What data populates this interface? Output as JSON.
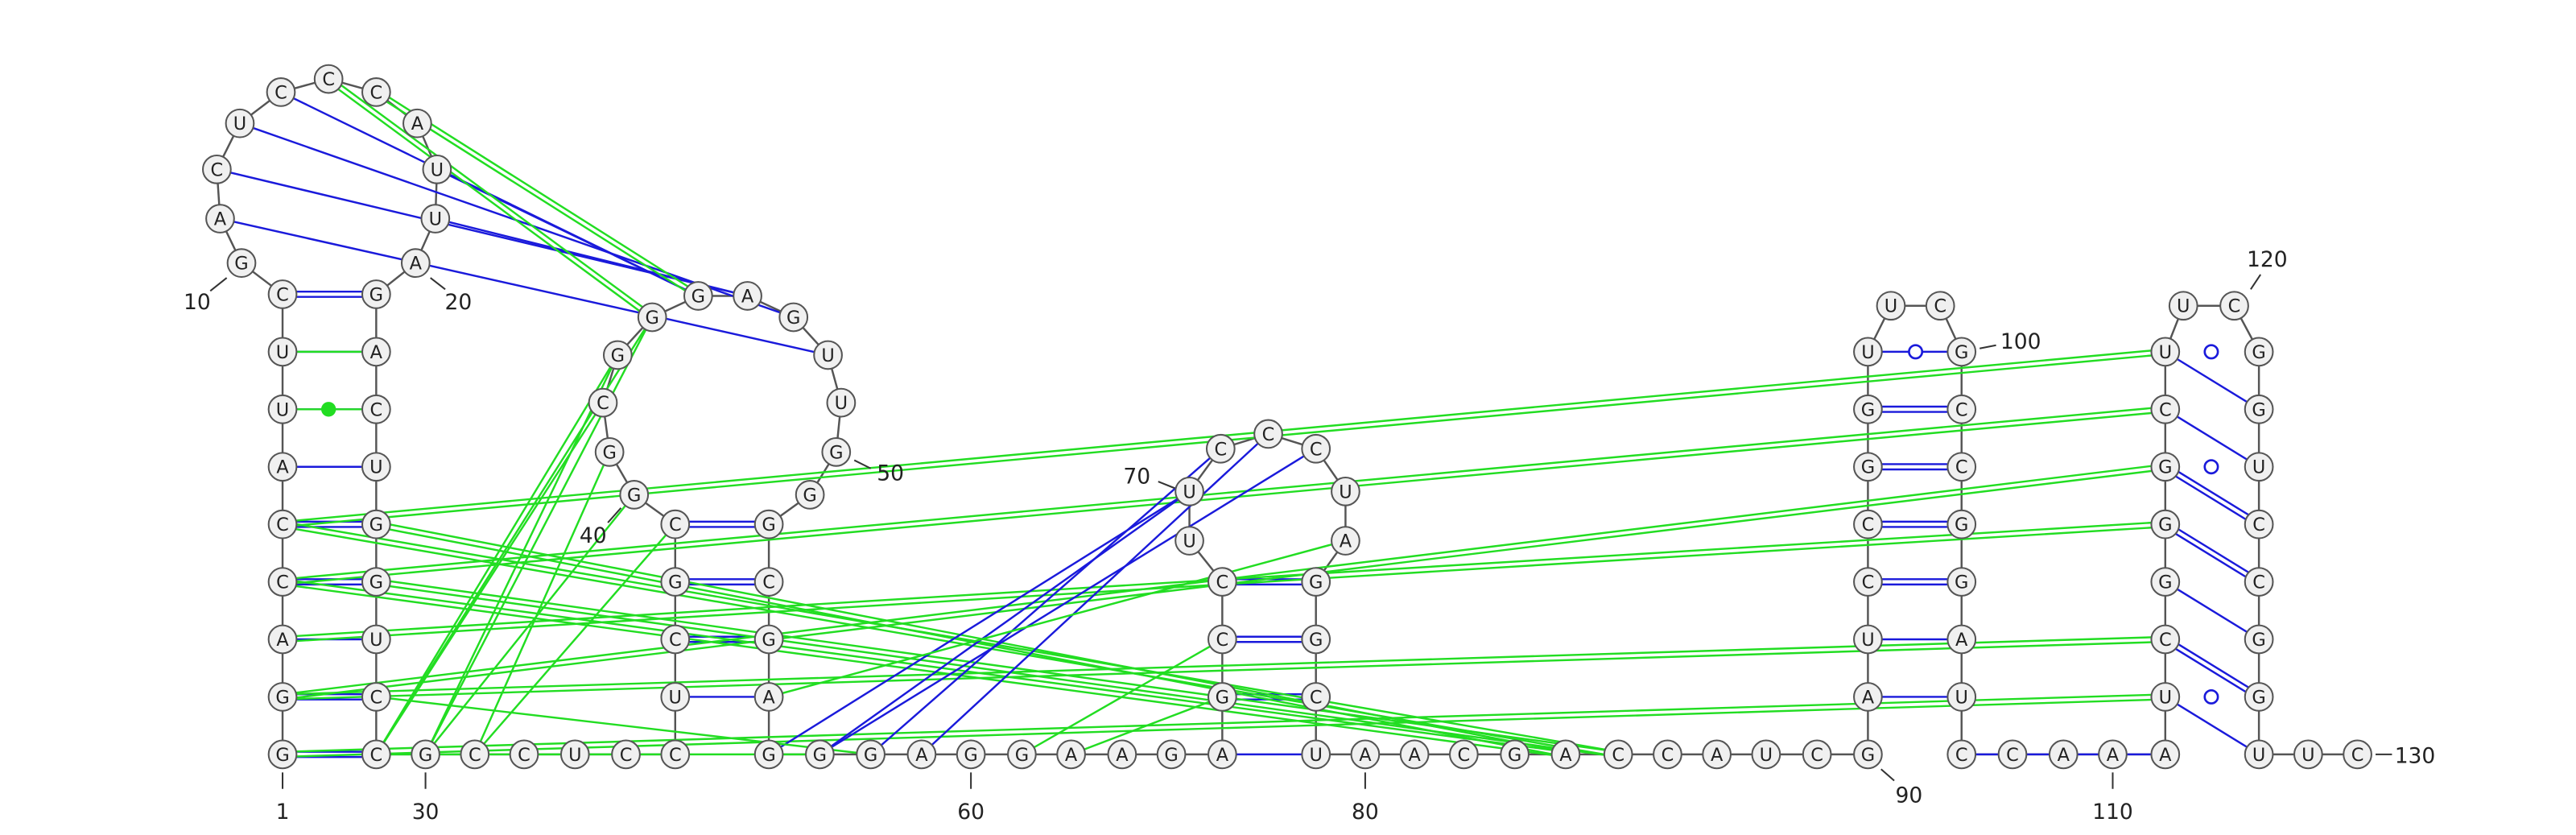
{
  "sequence": [
    "G",
    "G",
    "A",
    "C",
    "C",
    "A",
    "U",
    "U",
    "C",
    "G",
    "A",
    "C",
    "U",
    "C",
    "C",
    "C",
    "A",
    "U",
    "U",
    "A",
    "G",
    "A",
    "C",
    "U",
    "G",
    "G",
    "U",
    "C",
    "C",
    "G",
    "C",
    "C",
    "U",
    "C",
    "C",
    "U",
    "C",
    "G",
    "C",
    "G",
    "G",
    "C",
    "G",
    "G",
    "G",
    "A",
    "G",
    "U",
    "U",
    "G",
    "G",
    "G",
    "C",
    "G",
    "A",
    "G",
    "G",
    "G",
    "A",
    "G",
    "G",
    "A",
    "A",
    "G",
    "A",
    "G",
    "C",
    "C",
    "U",
    "U",
    "C",
    "C",
    "C",
    "U",
    "A",
    "G",
    "G",
    "C",
    "U",
    "A",
    "A",
    "C",
    "G",
    "A",
    "C",
    "C",
    "A",
    "U",
    "C",
    "G",
    "A",
    "U",
    "C",
    "C",
    "G",
    "G",
    "U",
    "U",
    "C",
    "G",
    "C",
    "C",
    "G",
    "G",
    "A",
    "U",
    "C",
    "C",
    "A",
    "A",
    "A",
    "U",
    "C",
    "G",
    "G",
    "G",
    "C",
    "U",
    "U",
    "C",
    "G",
    "G",
    "U",
    "C",
    "C",
    "G",
    "G",
    "U",
    "U",
    "C"
  ],
  "position_labels": [
    "1",
    "10",
    "20",
    "30",
    "40",
    "50",
    "60",
    "70",
    "80",
    "90",
    "100",
    "110",
    "120",
    "130"
  ]
}
